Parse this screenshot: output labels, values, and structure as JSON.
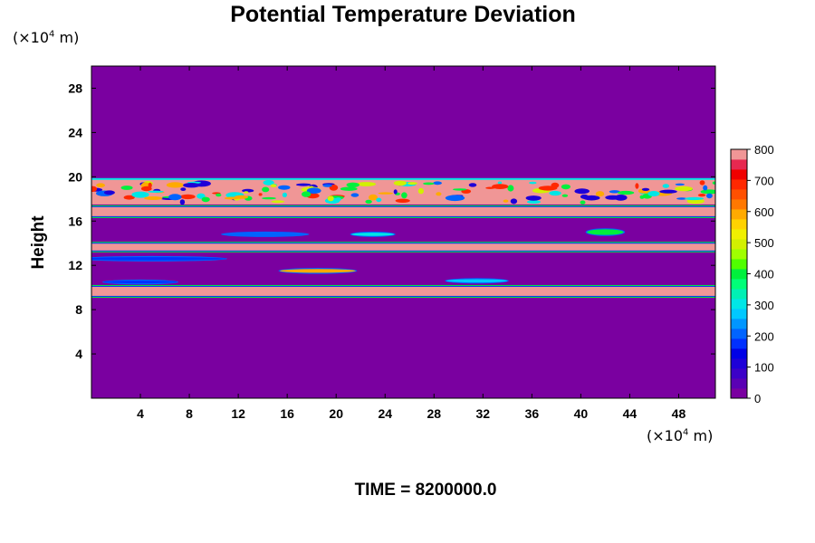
{
  "chart_data": {
    "type": "heatmap",
    "title": "Potential Temperature Deviation",
    "ylabel": "Height",
    "y_unit_label": {
      "pre": "(×10",
      "exp": "4",
      "post": " m)"
    },
    "x_unit_label": {
      "pre": "(×10",
      "exp": "4",
      "post": " m)"
    },
    "xlim": [
      0,
      51
    ],
    "ylim": [
      0,
      30
    ],
    "x_ticks": [
      "4",
      "8",
      "12",
      "16",
      "20",
      "24",
      "28",
      "32",
      "36",
      "40",
      "44",
      "48"
    ],
    "y_ticks": [
      "4",
      "8",
      "12",
      "16",
      "20",
      "24",
      "28"
    ],
    "colorbar": {
      "range": [
        0,
        800
      ],
      "ticks": [
        "0",
        "100",
        "200",
        "300",
        "400",
        "500",
        "600",
        "700",
        "800"
      ],
      "colors": [
        "#7a00a0",
        "#5a00b4",
        "#3c00c8",
        "#1e00d8",
        "#0000e6",
        "#0030ff",
        "#0064ff",
        "#0096ff",
        "#00c8ff",
        "#00e6e6",
        "#00f0b4",
        "#00ff78",
        "#00f03c",
        "#50ff00",
        "#a0ff00",
        "#d2f000",
        "#f0f000",
        "#ffd200",
        "#ffaa00",
        "#ff7800",
        "#ff5000",
        "#ff2800",
        "#f00000",
        "#e62850",
        "#f09696"
      ]
    },
    "background_value": 0,
    "bands": [
      {
        "y0": 16.4,
        "y1": 17.3,
        "value": 800
      },
      {
        "y0": 13.3,
        "y1": 14.0,
        "value": 800
      },
      {
        "y0": 9.2,
        "y1": 10.1,
        "value": 800
      },
      {
        "y0": 17.5,
        "y1": 19.8,
        "value": 800,
        "turbulent": true
      }
    ],
    "blobs": [
      {
        "x": 18.5,
        "y": 11.5,
        "w": 6.2,
        "h": 0.35,
        "value": 600
      },
      {
        "x": 31.5,
        "y": 10.6,
        "w": 5.0,
        "h": 0.3,
        "value": 250
      },
      {
        "x": 14.2,
        "y": 14.8,
        "w": 7.0,
        "h": 0.3,
        "value": 200
      },
      {
        "x": 23.0,
        "y": 14.8,
        "w": 3.5,
        "h": 0.3,
        "value": 300
      },
      {
        "x": 42.0,
        "y": 15.0,
        "w": 3.0,
        "h": 0.5,
        "value": 400
      },
      {
        "x": 5.0,
        "y": 12.6,
        "w": 12.0,
        "h": 0.3,
        "value": 150
      },
      {
        "x": 4.0,
        "y": 10.5,
        "w": 6.0,
        "h": 0.25,
        "value": 150
      }
    ],
    "time_label": "TIME = 8200000.0"
  }
}
